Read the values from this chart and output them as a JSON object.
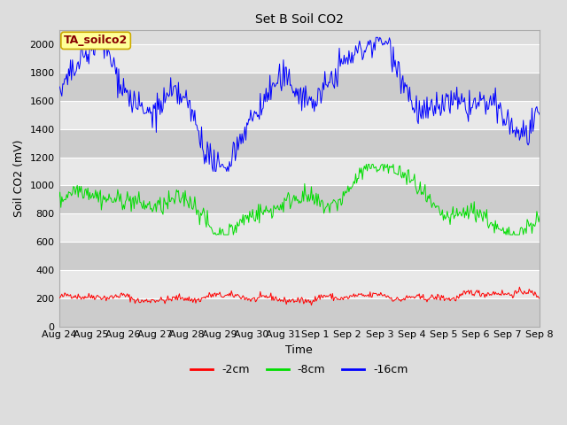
{
  "title": "Set B Soil CO2",
  "xlabel": "Time",
  "ylabel": "Soil CO2 (mV)",
  "ylim": [
    0,
    2100
  ],
  "yticks": [
    0,
    200,
    400,
    600,
    800,
    1000,
    1200,
    1400,
    1600,
    1800,
    2000
  ],
  "xtick_labels": [
    "Aug 24",
    "Aug 25",
    "Aug 26",
    "Aug 27",
    "Aug 28",
    "Aug 29",
    "Aug 30",
    "Aug 31",
    "Sep 1",
    "Sep 2",
    "Sep 3",
    "Sep 4",
    "Sep 5",
    "Sep 6",
    "Sep 7",
    "Sep 8"
  ],
  "legend_labels": [
    "-2cm",
    "-8cm",
    "-16cm"
  ],
  "legend_colors": [
    "#ff0000",
    "#00dd00",
    "#0000ff"
  ],
  "line_colors": [
    "#ff0000",
    "#00dd00",
    "#0000ff"
  ],
  "bg_color": "#dddddd",
  "plot_bg_color": "#dddddd",
  "band_light": "#e8e8e8",
  "band_dark": "#cccccc",
  "annotation_text": "TA_soilco2",
  "annotation_bg": "#ffff99",
  "annotation_border": "#ccaa00",
  "annotation_text_color": "#880000",
  "num_points": 500,
  "title_fontsize": 10,
  "axis_fontsize": 9,
  "tick_fontsize": 8
}
